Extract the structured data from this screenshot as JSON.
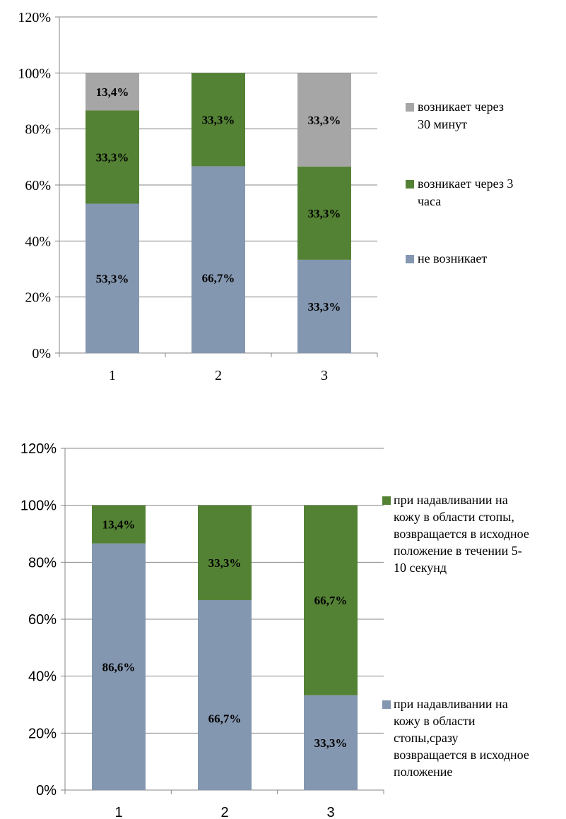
{
  "chart_data": [
    {
      "type": "bar",
      "stacked": true,
      "categories": [
        "1",
        "2",
        "3"
      ],
      "ylim": [
        0,
        120
      ],
      "yticks": [
        "0%",
        "20%",
        "40%",
        "60%",
        "80%",
        "100%",
        "120%"
      ],
      "grid": true,
      "legend_position": "right",
      "title": "",
      "xlabel": "",
      "ylabel": "",
      "series": [
        {
          "name": "не возникает",
          "color": "#8497B0",
          "values": [
            53.3,
            66.7,
            33.3
          ],
          "labels": [
            "53,3%",
            "66,7%",
            "33,3%"
          ]
        },
        {
          "name": "возникает через 3 часа",
          "color": "#548235",
          "values": [
            33.3,
            33.3,
            33.3
          ],
          "labels": [
            "33,3%",
            "33,3%",
            "33,3%"
          ]
        },
        {
          "name": "возникает через 30 минут",
          "color": "#A6A6A6",
          "values": [
            13.4,
            0,
            33.3
          ],
          "labels": [
            "13,4%",
            "",
            "33,3%"
          ]
        }
      ]
    },
    {
      "type": "bar",
      "stacked": true,
      "categories": [
        "1",
        "2",
        "3"
      ],
      "ylim": [
        0,
        120
      ],
      "yticks": [
        "0%",
        "20%",
        "40%",
        "60%",
        "80%",
        "100%",
        "120%"
      ],
      "grid": true,
      "legend_position": "right",
      "title": "",
      "xlabel": "",
      "ylabel": "",
      "series": [
        {
          "name": "при надавливании на кожу в области стопы,сразу возвращается в исходное положение",
          "color": "#8497B0",
          "values": [
            86.6,
            66.7,
            33.3
          ],
          "labels": [
            "86,6%",
            "66,7%",
            "33,3%"
          ]
        },
        {
          "name": "при надавливании на кожу в области стопы, возвращается в исходное положение в течении 5-10 секунд",
          "color": "#548235",
          "values": [
            13.4,
            33.3,
            66.7
          ],
          "labels": [
            "13,4%",
            "33,3%",
            "66,7%"
          ]
        }
      ]
    }
  ]
}
